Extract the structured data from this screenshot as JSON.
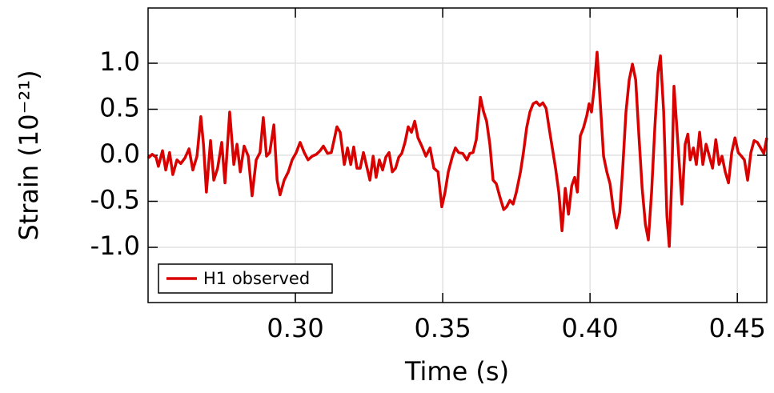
{
  "chart_data": {
    "type": "line",
    "xlabel": "Time (s)",
    "ylabel": "Strain (10⁻²¹)",
    "xlim": [
      0.25,
      0.46
    ],
    "ylim": [
      -1.6,
      1.6
    ],
    "xticks": [
      {
        "value": 0.3,
        "label": "0.30"
      },
      {
        "value": 0.35,
        "label": "0.35"
      },
      {
        "value": 0.4,
        "label": "0.40"
      },
      {
        "value": 0.45,
        "label": "0.45"
      }
    ],
    "yticks": [
      {
        "value": 1.0,
        "label": "1.0"
      },
      {
        "value": 0.5,
        "label": "0.5"
      },
      {
        "value": 0.0,
        "label": "0.0"
      },
      {
        "value": -0.5,
        "label": "-0.5"
      },
      {
        "value": -1.0,
        "label": "-1.0"
      }
    ],
    "grid": true,
    "legend": "lower left",
    "series": [
      {
        "name": "H1 observed",
        "color": "#d90000",
        "x": [
          0.25,
          0.2514,
          0.2527,
          0.2535,
          0.2549,
          0.256,
          0.2573,
          0.2584,
          0.2598,
          0.2611,
          0.2625,
          0.2639,
          0.2652,
          0.2666,
          0.2679,
          0.2688,
          0.2698,
          0.2712,
          0.2723,
          0.2736,
          0.275,
          0.2761,
          0.2777,
          0.2791,
          0.2802,
          0.2813,
          0.2826,
          0.284,
          0.2853,
          0.2867,
          0.288,
          0.2891,
          0.2902,
          0.2913,
          0.2927,
          0.2938,
          0.2948,
          0.2962,
          0.2976,
          0.2989,
          0.3003,
          0.3016,
          0.303,
          0.3043,
          0.3057,
          0.3071,
          0.3084,
          0.3095,
          0.3109,
          0.3122,
          0.3133,
          0.3141,
          0.3152,
          0.3166,
          0.3177,
          0.3188,
          0.3198,
          0.3209,
          0.322,
          0.3231,
          0.3242,
          0.3253,
          0.3264,
          0.3274,
          0.3285,
          0.3296,
          0.3307,
          0.3318,
          0.3329,
          0.334,
          0.3351,
          0.3361,
          0.3372,
          0.3383,
          0.3394,
          0.3405,
          0.3416,
          0.3429,
          0.3443,
          0.3457,
          0.347,
          0.3484,
          0.3497,
          0.3508,
          0.3519,
          0.3533,
          0.3543,
          0.3554,
          0.3568,
          0.3582,
          0.3592,
          0.3603,
          0.3614,
          0.3628,
          0.3639,
          0.3649,
          0.366,
          0.3671,
          0.3682,
          0.3693,
          0.3707,
          0.3717,
          0.3728,
          0.3739,
          0.375,
          0.3764,
          0.3774,
          0.3785,
          0.3796,
          0.3807,
          0.3818,
          0.3829,
          0.384,
          0.3851,
          0.3861,
          0.3872,
          0.3883,
          0.3894,
          0.3905,
          0.3916,
          0.3927,
          0.3938,
          0.3948,
          0.3957,
          0.3967,
          0.3978,
          0.3989,
          0.3997,
          0.4005,
          0.4014,
          0.4024,
          0.4035,
          0.4046,
          0.4057,
          0.4068,
          0.4079,
          0.409,
          0.4101,
          0.4111,
          0.4122,
          0.4133,
          0.4144,
          0.4155,
          0.4166,
          0.4177,
          0.4188,
          0.4198,
          0.4209,
          0.422,
          0.4231,
          0.4239,
          0.425,
          0.4261,
          0.4269,
          0.4277,
          0.4285,
          0.4293,
          0.4304,
          0.4312,
          0.4323,
          0.4332,
          0.434,
          0.4351,
          0.4361,
          0.4372,
          0.4383,
          0.4394,
          0.4405,
          0.4416,
          0.4427,
          0.4438,
          0.4448,
          0.4459,
          0.447,
          0.4481,
          0.4492,
          0.4503,
          0.4514,
          0.4524,
          0.4535,
          0.4546,
          0.4557,
          0.4568,
          0.4579,
          0.459,
          0.46
        ],
        "values": [
          -0.03,
          0.01,
          -0.02,
          -0.12,
          0.05,
          -0.16,
          0.03,
          -0.21,
          -0.05,
          -0.09,
          -0.03,
          0.07,
          -0.16,
          -0.01,
          0.42,
          0.12,
          -0.4,
          0.16,
          -0.27,
          -0.14,
          0.14,
          -0.3,
          0.47,
          -0.1,
          0.12,
          -0.18,
          0.1,
          -0.01,
          -0.44,
          -0.05,
          0.03,
          0.41,
          -0.01,
          0.03,
          0.33,
          -0.27,
          -0.43,
          -0.27,
          -0.18,
          -0.05,
          0.03,
          0.14,
          0.03,
          -0.05,
          -0.01,
          0.01,
          0.05,
          0.1,
          0.02,
          0.03,
          0.19,
          0.31,
          0.25,
          -0.1,
          0.08,
          -0.1,
          0.09,
          -0.14,
          -0.14,
          0.03,
          -0.12,
          -0.27,
          -0.01,
          -0.24,
          -0.05,
          -0.16,
          -0.02,
          0.03,
          -0.18,
          -0.14,
          -0.02,
          0.02,
          0.14,
          0.31,
          0.25,
          0.37,
          0.19,
          0.1,
          -0.01,
          0.08,
          -0.14,
          -0.18,
          -0.56,
          -0.4,
          -0.18,
          -0.01,
          0.08,
          0.03,
          0.02,
          -0.05,
          0.02,
          0.03,
          0.17,
          0.63,
          0.47,
          0.37,
          0.12,
          -0.27,
          -0.31,
          -0.44,
          -0.59,
          -0.56,
          -0.49,
          -0.53,
          -0.4,
          -0.18,
          0.03,
          0.3,
          0.47,
          0.56,
          0.58,
          0.54,
          0.57,
          0.51,
          0.3,
          0.08,
          -0.14,
          -0.4,
          -0.82,
          -0.36,
          -0.64,
          -0.33,
          -0.24,
          -0.4,
          0.21,
          0.3,
          0.43,
          0.56,
          0.47,
          0.73,
          1.12,
          0.56,
          -0.01,
          -0.18,
          -0.31,
          -0.59,
          -0.79,
          -0.62,
          -0.14,
          0.47,
          0.82,
          0.99,
          0.82,
          0.21,
          -0.36,
          -0.75,
          -0.92,
          -0.4,
          0.3,
          0.9,
          1.08,
          0.47,
          -0.66,
          -0.99,
          -0.31,
          0.75,
          0.38,
          -0.14,
          -0.53,
          0.12,
          0.23,
          -0.05,
          0.08,
          -0.1,
          0.25,
          -0.1,
          0.12,
          -0.01,
          -0.14,
          0.17,
          -0.1,
          -0.01,
          -0.18,
          -0.3,
          0.03,
          0.19,
          0.03,
          -0.01,
          -0.05,
          -0.27,
          0.03,
          0.16,
          0.14,
          0.08,
          0.02,
          0.19
        ]
      }
    ]
  }
}
